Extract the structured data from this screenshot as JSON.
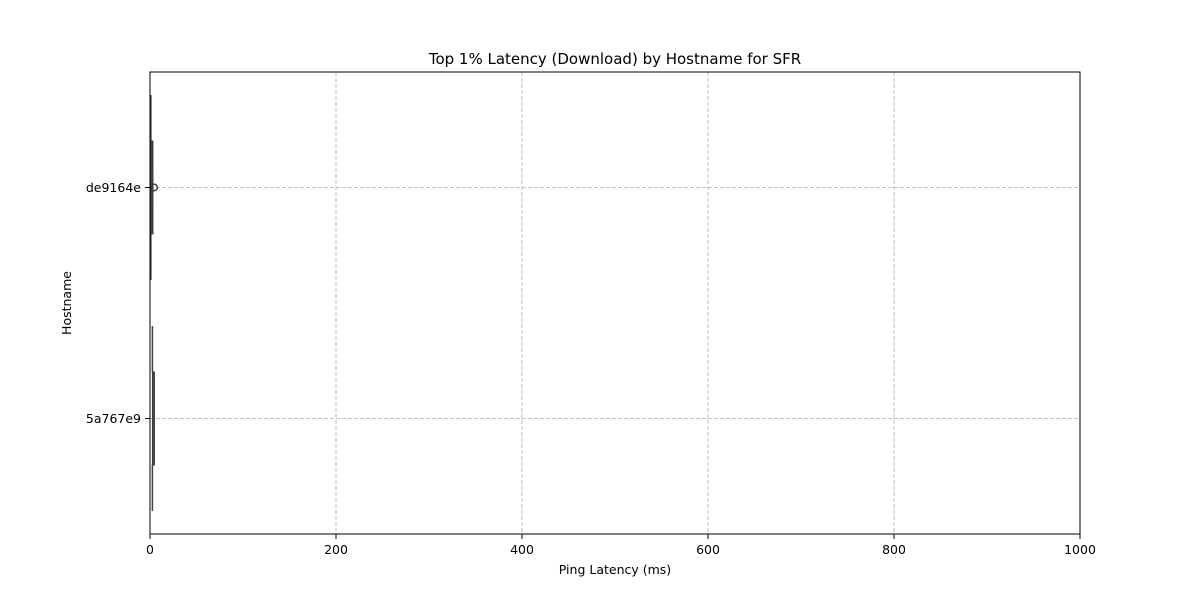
{
  "chart_data": {
    "type": "box",
    "orientation": "horizontal",
    "title": "Top 1% Latency (Download) by Hostname for SFR",
    "xlabel": "Ping Latency (ms)",
    "ylabel": "Hostname",
    "xlim": [
      0,
      1000
    ],
    "x_ticks": [
      0,
      200,
      400,
      600,
      800,
      1000
    ],
    "categories": [
      "de9164e",
      "5a767e9"
    ],
    "boxes": [
      {
        "category": "de9164e",
        "whisker_low": 0.9,
        "q1": 1.3,
        "median": 1.7,
        "q3": 2.2,
        "whisker_high": 2.7,
        "outliers": [
          4.5
        ]
      },
      {
        "category": "5a767e9",
        "whisker_low": 2.6,
        "q1": 2.9,
        "median": 3.2,
        "q3": 3.5,
        "whisker_high": 3.8,
        "outliers": []
      }
    ],
    "grid": true,
    "colors": {
      "box_edge": "#3f3f3f",
      "box_fill": "#5a7fb0",
      "grid": "#b0b0b0"
    }
  }
}
